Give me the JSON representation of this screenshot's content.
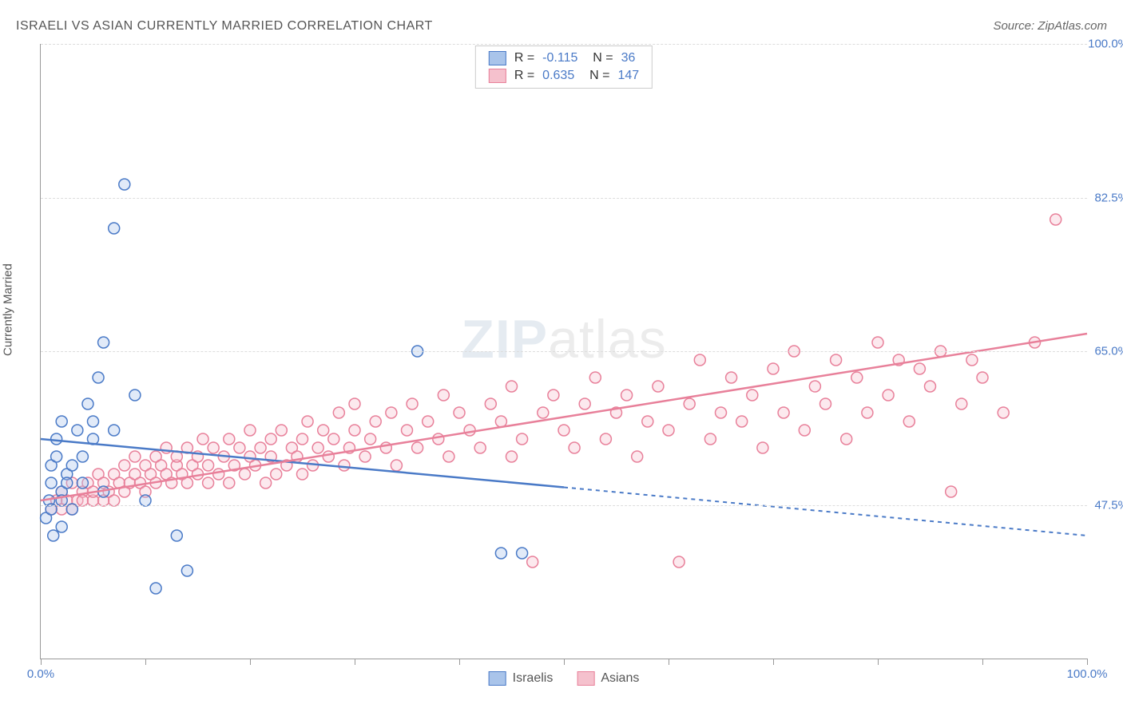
{
  "title": "ISRAELI VS ASIAN CURRENTLY MARRIED CORRELATION CHART",
  "source": "Source: ZipAtlas.com",
  "y_axis_label": "Currently Married",
  "watermark": {
    "bold": "ZIP",
    "light": "atlas",
    "bold_color": "#5a7ca8",
    "light_color": "#888888"
  },
  "chart": {
    "type": "scatter",
    "xlim": [
      0,
      100
    ],
    "ylim": [
      30,
      100
    ],
    "y_gridlines": [
      47.5,
      65.0,
      82.5,
      100.0
    ],
    "y_grid_labels": [
      "47.5%",
      "65.0%",
      "82.5%",
      "100.0%"
    ],
    "y_label_color": "#4a7ac7",
    "x_ticks": [
      0,
      10,
      20,
      30,
      40,
      50,
      60,
      70,
      80,
      90,
      100
    ],
    "x_min_label": "0.0%",
    "x_max_label": "100.0%",
    "x_label_color": "#4a7ac7",
    "grid_color": "#dddddd",
    "axis_color": "#999999",
    "background": "#ffffff",
    "marker_radius": 7,
    "marker_stroke_width": 1.5,
    "marker_fill_opacity": 0.35,
    "line_width": 2.5,
    "dash_pattern": "5,5"
  },
  "series": {
    "israelis": {
      "label": "Israelis",
      "color_stroke": "#4a7ac7",
      "color_fill": "#a9c4ea",
      "R": "-0.115",
      "N": "36",
      "trend": {
        "y_at_x0": 55,
        "y_at_x100": 44,
        "solid_until_x": 50
      },
      "points": [
        [
          0.5,
          46
        ],
        [
          0.8,
          48
        ],
        [
          1,
          50
        ],
        [
          1,
          52
        ],
        [
          1,
          47
        ],
        [
          1.2,
          44
        ],
        [
          1.5,
          53
        ],
        [
          1.5,
          55
        ],
        [
          2,
          49
        ],
        [
          2,
          48
        ],
        [
          2,
          57
        ],
        [
          2,
          45
        ],
        [
          2.5,
          51
        ],
        [
          2.5,
          50
        ],
        [
          3,
          47
        ],
        [
          3,
          52
        ],
        [
          3.5,
          56
        ],
        [
          4,
          50
        ],
        [
          4,
          53
        ],
        [
          4.5,
          59
        ],
        [
          5,
          55
        ],
        [
          5,
          57
        ],
        [
          5.5,
          62
        ],
        [
          6,
          49
        ],
        [
          6,
          66
        ],
        [
          7,
          56
        ],
        [
          7,
          79
        ],
        [
          8,
          84
        ],
        [
          9,
          60
        ],
        [
          10,
          48
        ],
        [
          11,
          38
        ],
        [
          13,
          44
        ],
        [
          14,
          40
        ],
        [
          36,
          65
        ],
        [
          44,
          42
        ],
        [
          46,
          42
        ]
      ]
    },
    "asians": {
      "label": "Asians",
      "color_stroke": "#e8809a",
      "color_fill": "#f5c1cd",
      "R": "0.635",
      "N": "147",
      "trend": {
        "y_at_x0": 48,
        "y_at_x100": 67,
        "solid_until_x": 100
      },
      "points": [
        [
          1,
          47
        ],
        [
          1.5,
          48
        ],
        [
          2,
          47
        ],
        [
          2,
          49
        ],
        [
          2.5,
          48
        ],
        [
          3,
          47
        ],
        [
          3,
          50
        ],
        [
          3.5,
          48
        ],
        [
          4,
          49
        ],
        [
          4,
          48
        ],
        [
          4.5,
          50
        ],
        [
          5,
          48
        ],
        [
          5,
          49
        ],
        [
          5.5,
          51
        ],
        [
          6,
          48
        ],
        [
          6,
          50
        ],
        [
          6.5,
          49
        ],
        [
          7,
          51
        ],
        [
          7,
          48
        ],
        [
          7.5,
          50
        ],
        [
          8,
          49
        ],
        [
          8,
          52
        ],
        [
          8.5,
          50
        ],
        [
          9,
          51
        ],
        [
          9,
          53
        ],
        [
          9.5,
          50
        ],
        [
          10,
          52
        ],
        [
          10,
          49
        ],
        [
          10.5,
          51
        ],
        [
          11,
          53
        ],
        [
          11,
          50
        ],
        [
          11.5,
          52
        ],
        [
          12,
          51
        ],
        [
          12,
          54
        ],
        [
          12.5,
          50
        ],
        [
          13,
          52
        ],
        [
          13,
          53
        ],
        [
          13.5,
          51
        ],
        [
          14,
          54
        ],
        [
          14,
          50
        ],
        [
          14.5,
          52
        ],
        [
          15,
          53
        ],
        [
          15,
          51
        ],
        [
          15.5,
          55
        ],
        [
          16,
          52
        ],
        [
          16,
          50
        ],
        [
          16.5,
          54
        ],
        [
          17,
          51
        ],
        [
          17.5,
          53
        ],
        [
          18,
          55
        ],
        [
          18,
          50
        ],
        [
          18.5,
          52
        ],
        [
          19,
          54
        ],
        [
          19.5,
          51
        ],
        [
          20,
          53
        ],
        [
          20,
          56
        ],
        [
          20.5,
          52
        ],
        [
          21,
          54
        ],
        [
          21.5,
          50
        ],
        [
          22,
          55
        ],
        [
          22,
          53
        ],
        [
          22.5,
          51
        ],
        [
          23,
          56
        ],
        [
          23.5,
          52
        ],
        [
          24,
          54
        ],
        [
          24.5,
          53
        ],
        [
          25,
          55
        ],
        [
          25,
          51
        ],
        [
          25.5,
          57
        ],
        [
          26,
          52
        ],
        [
          26.5,
          54
        ],
        [
          27,
          56
        ],
        [
          27.5,
          53
        ],
        [
          28,
          55
        ],
        [
          28.5,
          58
        ],
        [
          29,
          52
        ],
        [
          29.5,
          54
        ],
        [
          30,
          56
        ],
        [
          30,
          59
        ],
        [
          31,
          53
        ],
        [
          31.5,
          55
        ],
        [
          32,
          57
        ],
        [
          33,
          54
        ],
        [
          33.5,
          58
        ],
        [
          34,
          52
        ],
        [
          35,
          56
        ],
        [
          35.5,
          59
        ],
        [
          36,
          54
        ],
        [
          37,
          57
        ],
        [
          38,
          55
        ],
        [
          38.5,
          60
        ],
        [
          39,
          53
        ],
        [
          40,
          58
        ],
        [
          41,
          56
        ],
        [
          42,
          54
        ],
        [
          43,
          59
        ],
        [
          44,
          57
        ],
        [
          45,
          53
        ],
        [
          45,
          61
        ],
        [
          46,
          55
        ],
        [
          47,
          41
        ],
        [
          48,
          58
        ],
        [
          49,
          60
        ],
        [
          50,
          56
        ],
        [
          51,
          54
        ],
        [
          52,
          59
        ],
        [
          53,
          62
        ],
        [
          54,
          55
        ],
        [
          55,
          58
        ],
        [
          56,
          60
        ],
        [
          57,
          53
        ],
        [
          58,
          57
        ],
        [
          59,
          61
        ],
        [
          60,
          56
        ],
        [
          61,
          41
        ],
        [
          62,
          59
        ],
        [
          63,
          64
        ],
        [
          64,
          55
        ],
        [
          65,
          58
        ],
        [
          66,
          62
        ],
        [
          67,
          57
        ],
        [
          68,
          60
        ],
        [
          69,
          54
        ],
        [
          70,
          63
        ],
        [
          71,
          58
        ],
        [
          72,
          65
        ],
        [
          73,
          56
        ],
        [
          74,
          61
        ],
        [
          75,
          59
        ],
        [
          76,
          64
        ],
        [
          77,
          55
        ],
        [
          78,
          62
        ],
        [
          79,
          58
        ],
        [
          80,
          66
        ],
        [
          81,
          60
        ],
        [
          82,
          64
        ],
        [
          83,
          57
        ],
        [
          84,
          63
        ],
        [
          85,
          61
        ],
        [
          86,
          65
        ],
        [
          87,
          49
        ],
        [
          88,
          59
        ],
        [
          89,
          64
        ],
        [
          90,
          62
        ],
        [
          92,
          58
        ],
        [
          95,
          66
        ],
        [
          97,
          80
        ]
      ]
    }
  },
  "legend_top": {
    "text_color": "#333333",
    "value_color": "#4a7ac7"
  },
  "legend_bottom": {
    "text_color": "#555555"
  }
}
